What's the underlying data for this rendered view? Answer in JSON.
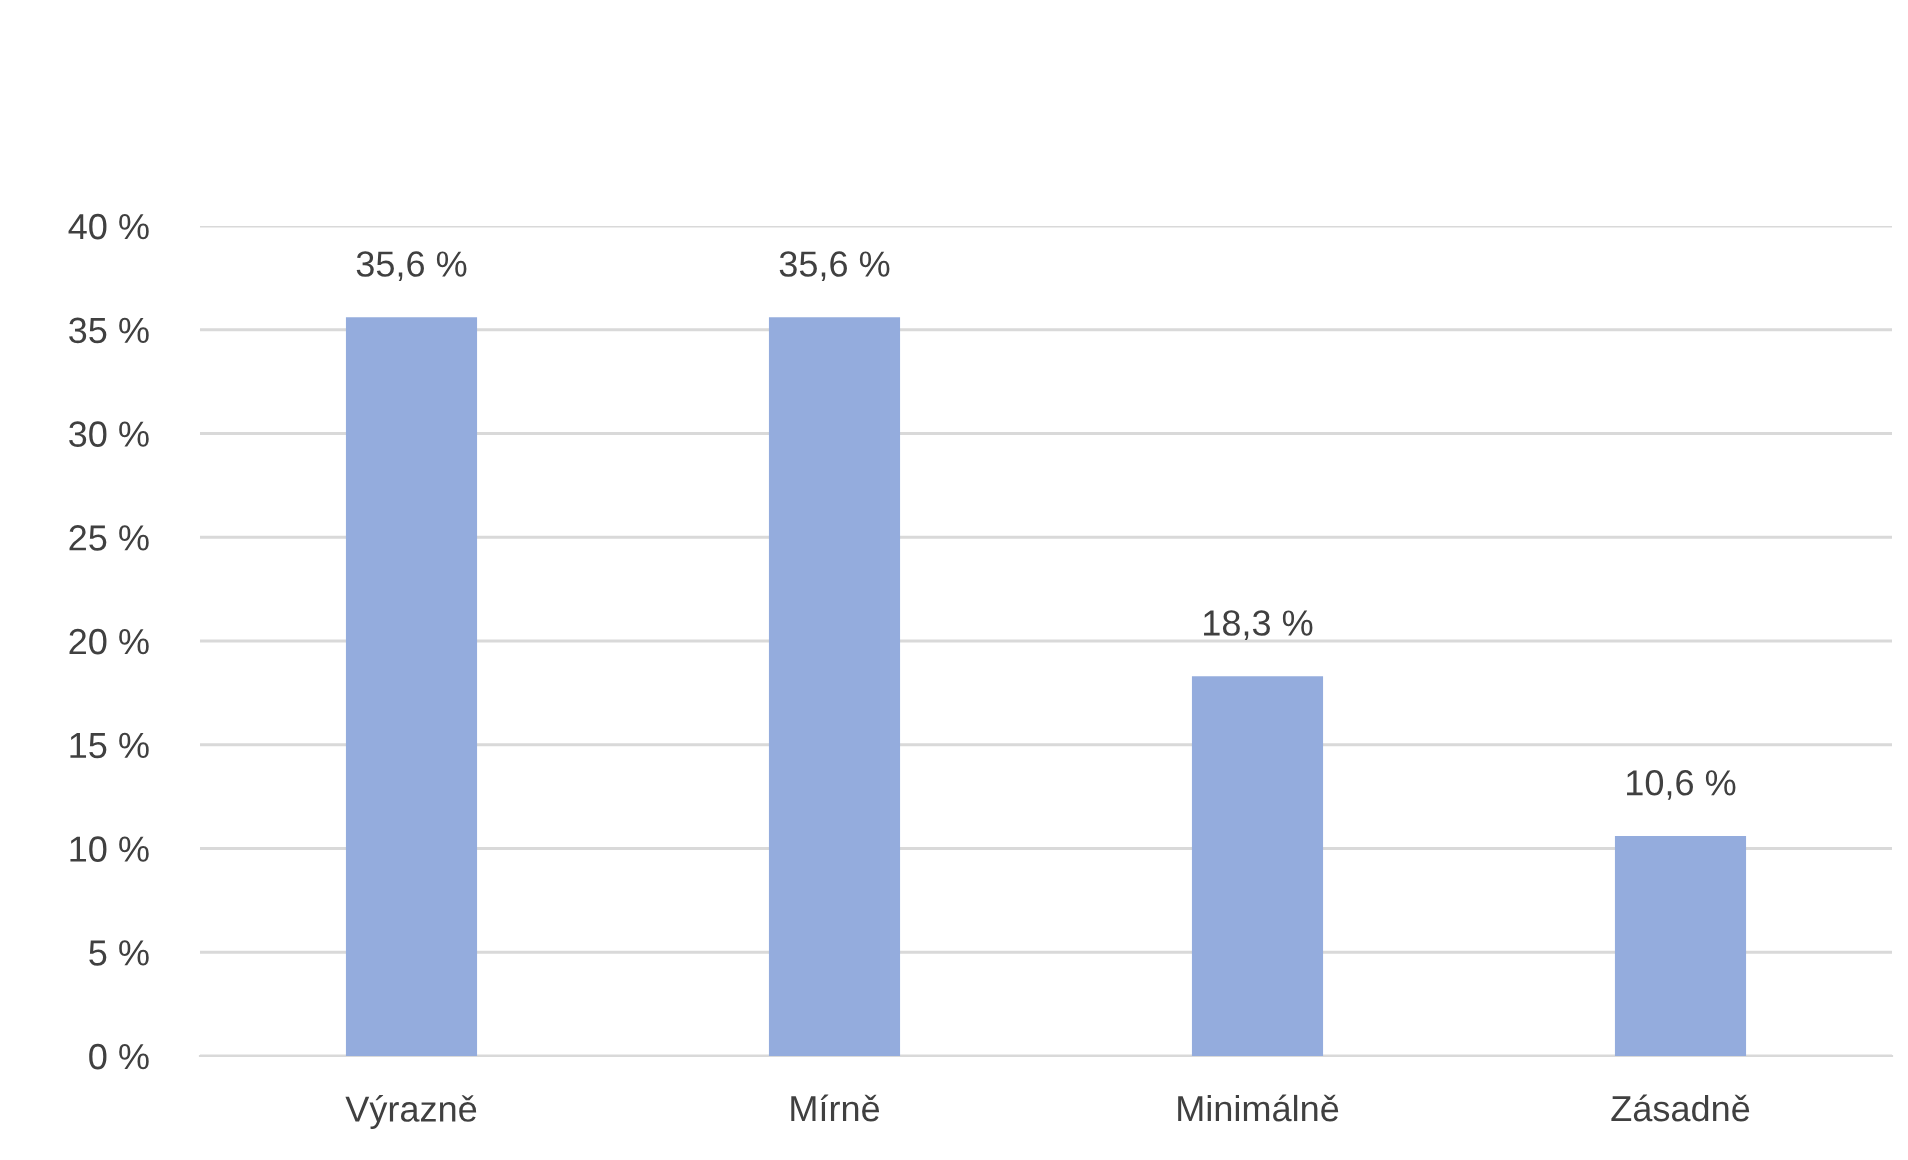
{
  "chart_data": {
    "type": "bar",
    "categories": [
      "Výrazně",
      "Mírně",
      "Minimálně",
      "Zásadně"
    ],
    "values": [
      35.6,
      35.6,
      18.3,
      10.6
    ],
    "value_labels": [
      "35,6 %",
      "35,6 %",
      "18,3 %",
      "10,6 %"
    ],
    "color": "#94acdd",
    "ylim": [
      0,
      40
    ],
    "yticks": [
      {
        "value": 0,
        "label": "0 %"
      },
      {
        "value": 5,
        "label": "5 %"
      },
      {
        "value": 10,
        "label": "10 %"
      },
      {
        "value": 15,
        "label": "15 %"
      },
      {
        "value": 20,
        "label": "20 %"
      },
      {
        "value": 25,
        "label": "25 %"
      },
      {
        "value": 30,
        "label": "30 %"
      },
      {
        "value": 35,
        "label": "35 %"
      },
      {
        "value": 40,
        "label": "40 %"
      }
    ],
    "grid": "y"
  }
}
